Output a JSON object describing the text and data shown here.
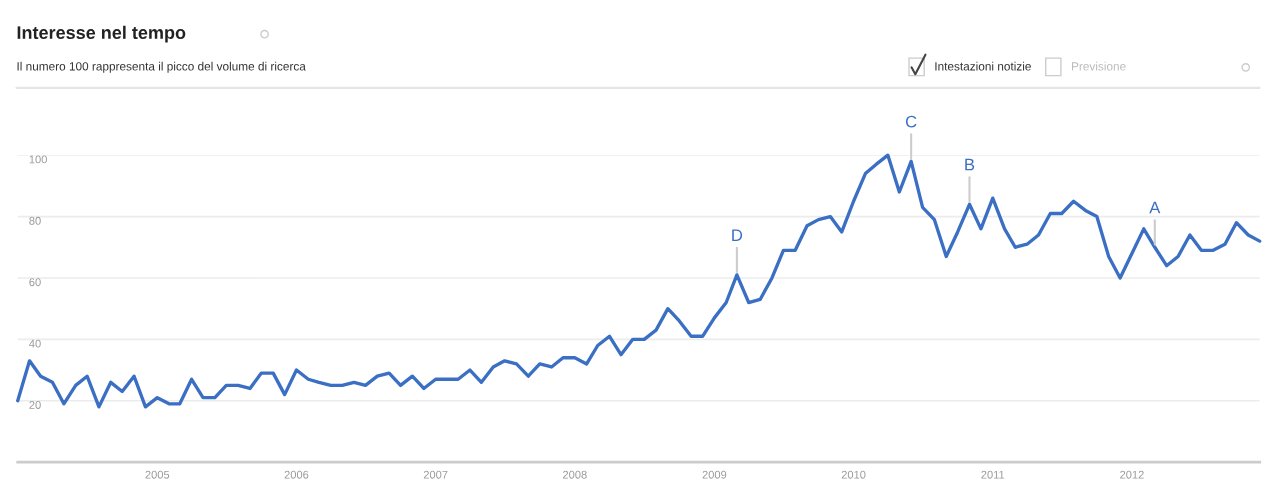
{
  "chart_data": {
    "type": "line",
    "title": "Interesse nel tempo",
    "subtitle": "Il numero 100 rappresenta il picco del volume di ricerca",
    "x": [
      "2004-01",
      "2004-02",
      "2004-03",
      "2004-04",
      "2004-05",
      "2004-06",
      "2004-07",
      "2004-08",
      "2004-09",
      "2004-10",
      "2004-11",
      "2004-12",
      "2005-01",
      "2005-02",
      "2005-03",
      "2005-04",
      "2005-05",
      "2005-06",
      "2005-07",
      "2005-08",
      "2005-09",
      "2005-10",
      "2005-11",
      "2005-12",
      "2006-01",
      "2006-02",
      "2006-03",
      "2006-04",
      "2006-05",
      "2006-06",
      "2006-07",
      "2006-08",
      "2006-09",
      "2006-10",
      "2006-11",
      "2006-12",
      "2007-01",
      "2007-02",
      "2007-03",
      "2007-04",
      "2007-05",
      "2007-06",
      "2007-07",
      "2007-08",
      "2007-09",
      "2007-10",
      "2007-11",
      "2007-12",
      "2008-01",
      "2008-02",
      "2008-03",
      "2008-04",
      "2008-05",
      "2008-06",
      "2008-07",
      "2008-08",
      "2008-09",
      "2008-10",
      "2008-11",
      "2008-12",
      "2009-01",
      "2009-02",
      "2009-03",
      "2009-04",
      "2009-05",
      "2009-06",
      "2009-07",
      "2009-08",
      "2009-09",
      "2009-10",
      "2009-11",
      "2009-12",
      "2010-01",
      "2010-02",
      "2010-03",
      "2010-04",
      "2010-05",
      "2010-06",
      "2010-07",
      "2010-08",
      "2010-09",
      "2010-10",
      "2010-11",
      "2010-12",
      "2011-01",
      "2011-02",
      "2011-03",
      "2011-04",
      "2011-05",
      "2011-06",
      "2011-07",
      "2011-08",
      "2011-09",
      "2011-10",
      "2011-11",
      "2011-12",
      "2012-01",
      "2012-02",
      "2012-03",
      "2012-04",
      "2012-05",
      "2012-06",
      "2012-07",
      "2012-08",
      "2012-09",
      "2012-10",
      "2012-11",
      "2012-12"
    ],
    "series": [
      {
        "color": "#3a6fc4",
        "values": [
          20,
          33,
          28,
          26,
          19,
          25,
          28,
          18,
          26,
          23,
          28,
          18,
          21,
          19,
          19,
          27,
          21,
          21,
          25,
          25,
          24,
          29,
          29,
          22,
          30,
          27,
          26,
          25,
          25,
          26,
          25,
          28,
          29,
          25,
          28,
          24,
          27,
          27,
          27,
          30,
          26,
          31,
          33,
          32,
          28,
          32,
          31,
          34,
          34,
          32,
          38,
          41,
          35,
          40,
          40,
          43,
          50,
          46,
          41,
          41,
          47,
          52,
          61,
          52,
          53,
          60,
          69,
          69,
          77,
          79,
          80,
          75,
          85,
          94,
          97,
          100,
          88,
          98,
          83,
          79,
          67,
          75,
          84,
          76,
          86,
          76,
          70,
          71,
          74,
          81,
          81,
          85,
          82,
          80,
          67,
          60,
          68,
          76,
          70,
          64,
          67,
          74,
          69,
          69,
          71,
          78,
          74,
          72
        ]
      }
    ],
    "xlim": [
      "2004-01",
      "2012-12"
    ],
    "xticks": [
      {
        "value": "2005-01",
        "label": "2005"
      },
      {
        "value": "2006-01",
        "label": "2006"
      },
      {
        "value": "2007-01",
        "label": "2007"
      },
      {
        "value": "2008-01",
        "label": "2008"
      },
      {
        "value": "2009-01",
        "label": "2009"
      },
      {
        "value": "2010-01",
        "label": "2010"
      },
      {
        "value": "2011-01",
        "label": "2011"
      },
      {
        "value": "2012-01",
        "label": "2012"
      }
    ],
    "ylim": [
      0,
      100
    ],
    "yticks": [
      20,
      40,
      60,
      80,
      100
    ],
    "grid": "y",
    "marker": "none",
    "line_style": "solid",
    "legend": false,
    "annotations": [
      {
        "text": "D",
        "x": "2009-03",
        "y": 61
      },
      {
        "text": "C",
        "x": "2010-06",
        "y": 98
      },
      {
        "text": "B",
        "x": "2010-11",
        "y": 84
      },
      {
        "text": "A",
        "x": "2012-03",
        "y": 70
      },
      "Intestazioni notizie",
      "Previsione"
    ]
  }
}
